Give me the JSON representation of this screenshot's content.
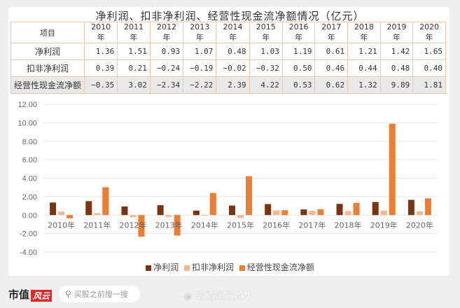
{
  "title": "净利润、扣非净利润、经营性现金流净额情况（亿元）",
  "table": {
    "header_label": "项目",
    "years": [
      "2010年",
      "2011年",
      "2012年",
      "2013年",
      "2014年",
      "2015年",
      "2016年",
      "2017年",
      "2018年",
      "2019年",
      "2020年"
    ],
    "rows": [
      {
        "label": "净利润",
        "values": [
          "1.36",
          "1.51",
          "0.93",
          "1.07",
          "0.48",
          "1.03",
          "1.19",
          "0.61",
          "1.21",
          "1.42",
          "1.65"
        ]
      },
      {
        "label": "扣非净利润",
        "values": [
          "0.39",
          "0.21",
          "−0.24",
          "−0.19",
          "−0.02",
          "−0.32",
          "0.50",
          "0.46",
          "0.44",
          "0.48",
          "0.40"
        ]
      },
      {
        "label": "经营性现金流净额",
        "values": [
          "−0.35",
          "3.02",
          "−2.34",
          "−2.22",
          "2.39",
          "4.22",
          "0.53",
          "0.62",
          "1.32",
          "9.89",
          "1.81"
        ]
      }
    ]
  },
  "chart_data": {
    "type": "bar",
    "title": "净利润、扣非净利润、经营性现金流净额情况（亿元）",
    "categories": [
      "2010年",
      "2011年",
      "2012年",
      "2013年",
      "2014年",
      "2015年",
      "2016年",
      "2017年",
      "2018年",
      "2019年",
      "2020年"
    ],
    "series": [
      {
        "name": "净利润",
        "color": "#7b3410",
        "values": [
          1.36,
          1.51,
          0.93,
          1.07,
          0.48,
          1.03,
          1.19,
          0.61,
          1.21,
          1.42,
          1.65
        ]
      },
      {
        "name": "扣非净利润",
        "color": "#f5b88e",
        "values": [
          0.39,
          0.21,
          -0.24,
          -0.19,
          -0.02,
          -0.32,
          0.5,
          0.46,
          0.44,
          0.48,
          0.4
        ]
      },
      {
        "name": "经营性现金流净额",
        "color": "#ed7d31",
        "values": [
          -0.35,
          3.02,
          -2.34,
          -2.22,
          2.39,
          4.22,
          0.53,
          0.62,
          1.32,
          9.89,
          1.81
        ]
      }
    ],
    "xlabel": "",
    "ylabel": "",
    "ylim": [
      -4,
      12
    ],
    "yticks": [
      "12.00",
      "10.00",
      "8.00",
      "6.00",
      "4.00",
      "2.00",
      "0.00",
      "-2.00",
      "-4.00"
    ],
    "grid": true,
    "legend_position": "bottom"
  },
  "legend": [
    {
      "label": "净利润",
      "color": "#7b3410"
    },
    {
      "label": "扣非净利润",
      "color": "#f5b88e"
    },
    {
      "label": "经营性现金流净额",
      "color": "#ed7d31"
    }
  ],
  "footer": {
    "logo_text": "市值",
    "logo_badge": "风云",
    "search_placeholder": "买股之前搜一搜",
    "weibo_handle": "市值风云APP"
  }
}
